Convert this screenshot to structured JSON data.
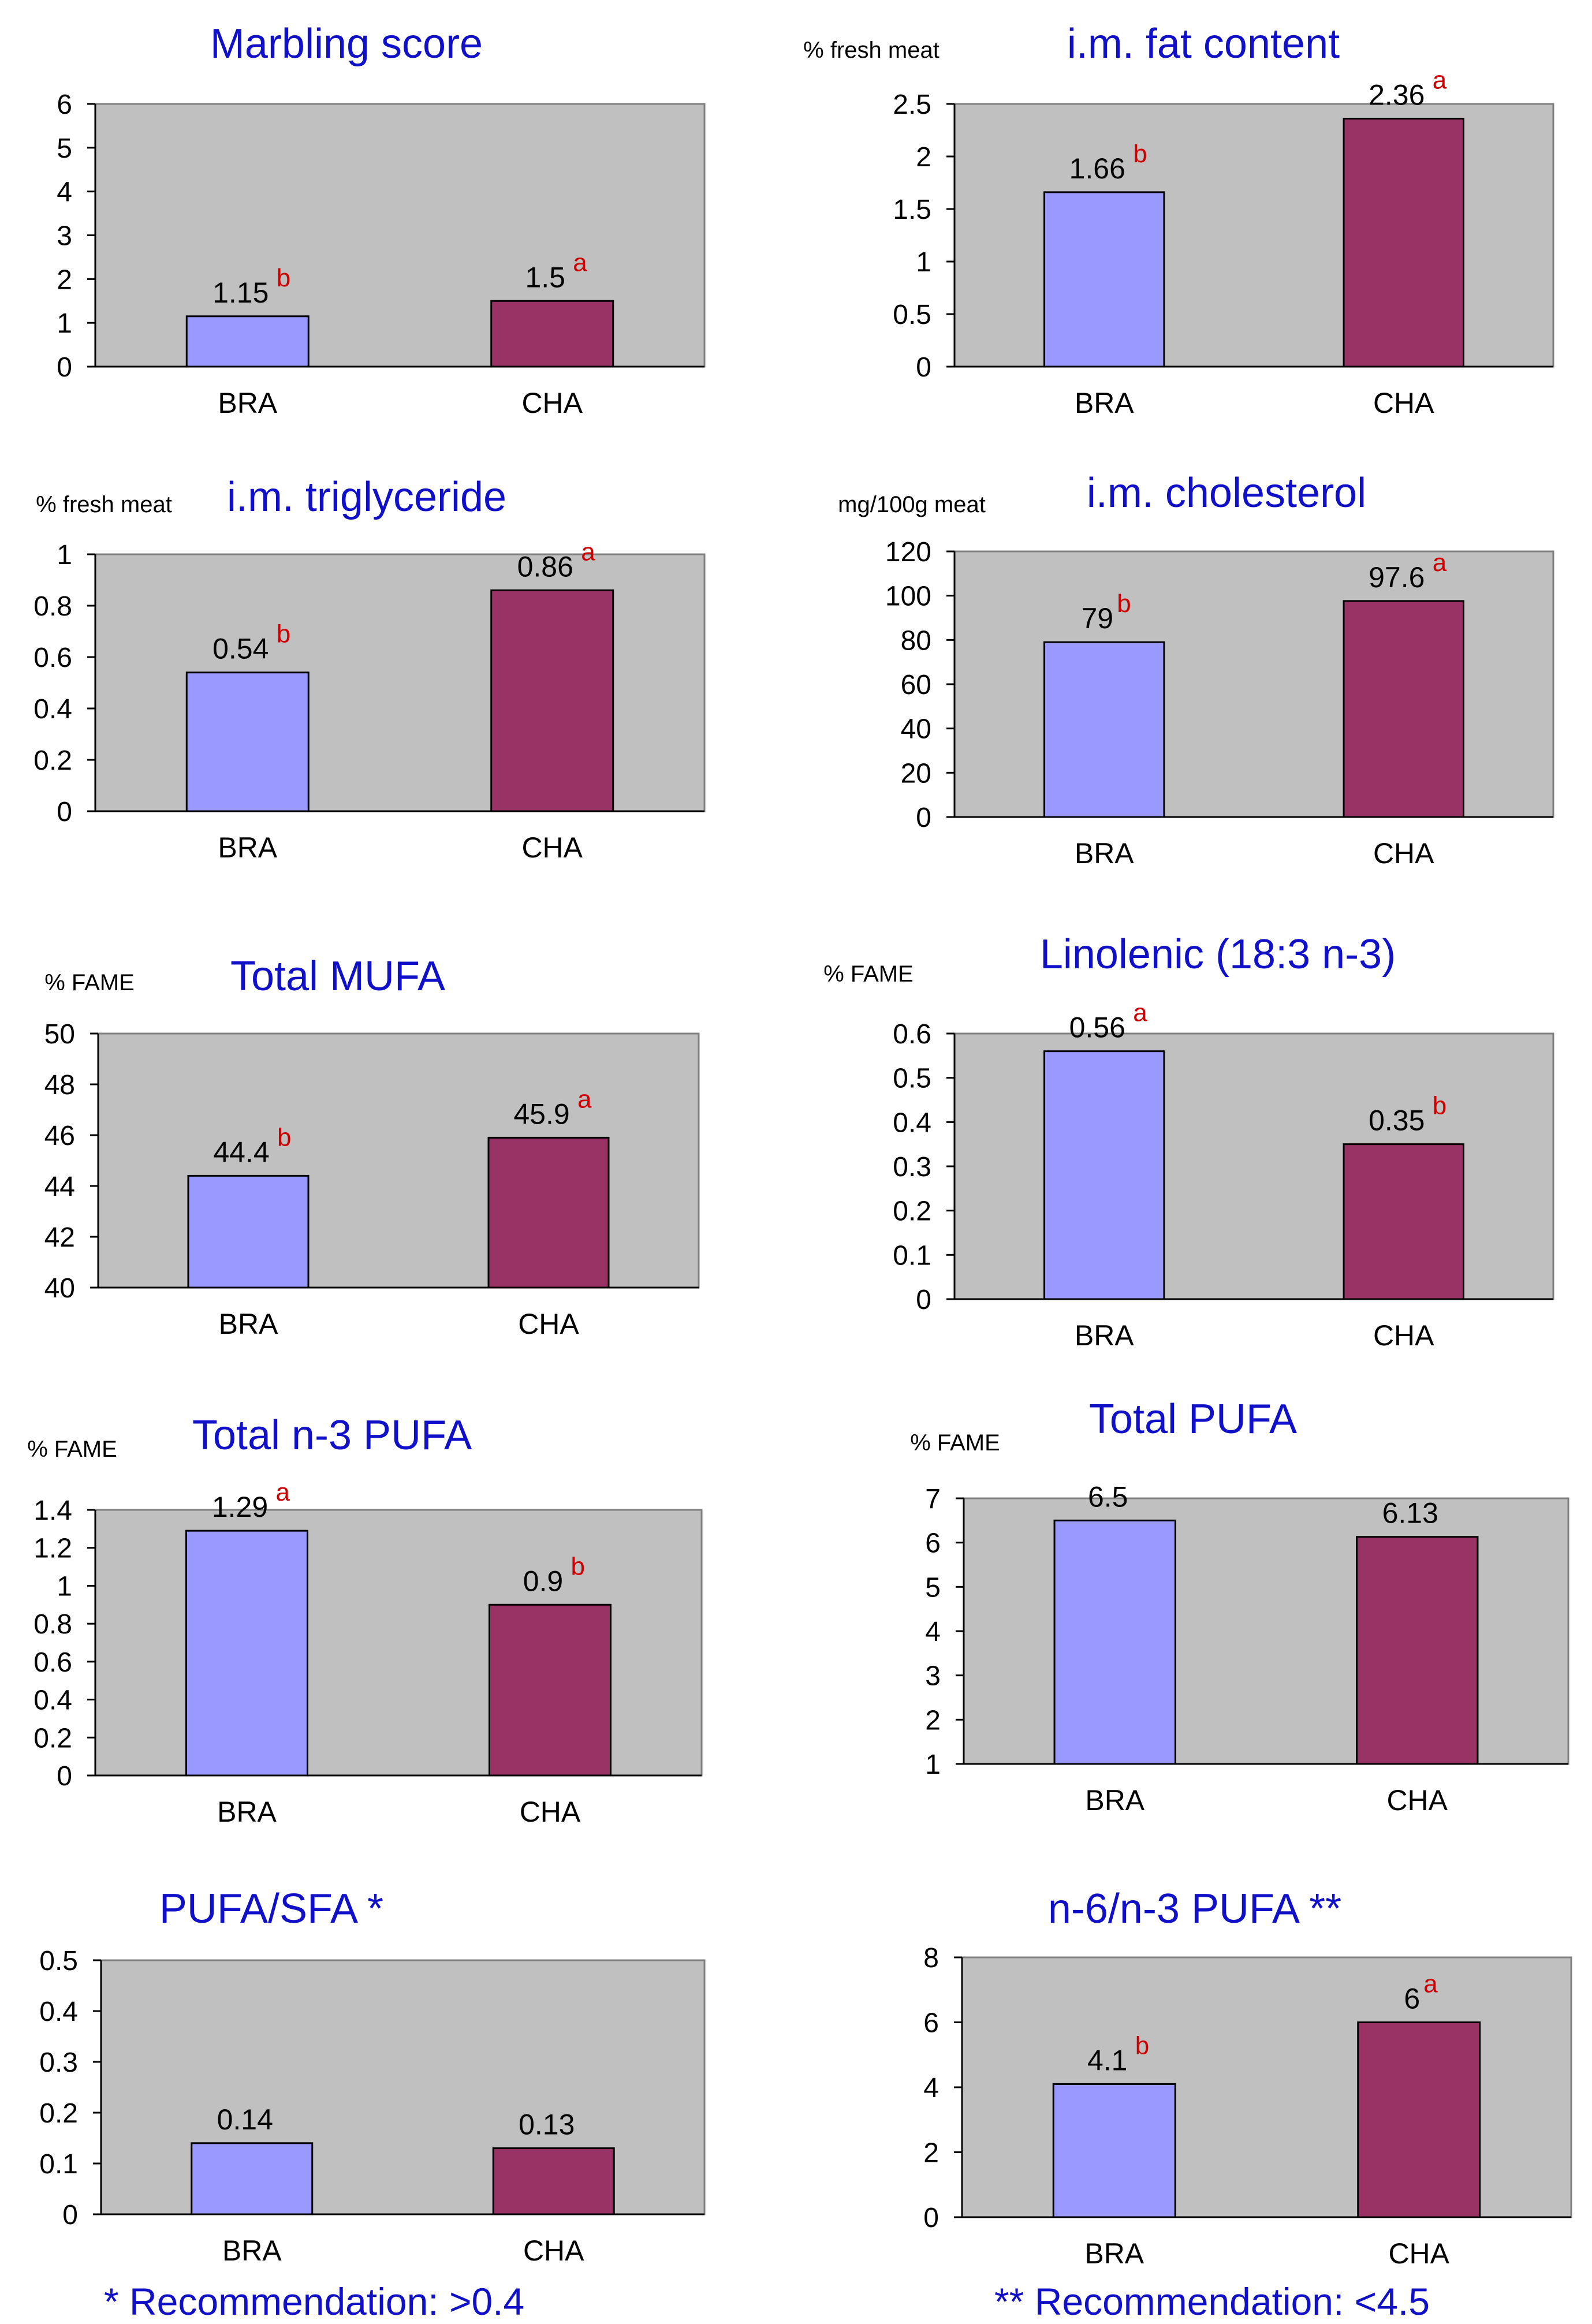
{
  "colors": {
    "title": "#1010c8",
    "plot_bg": "#c0c0c0",
    "bra": "#9999ff",
    "cha": "#993366",
    "sig": "#cc0000",
    "text": "#000000"
  },
  "chart_data": [
    {
      "type": "bar",
      "title": "Marbling score",
      "ylabel": "",
      "categories": [
        "BRA",
        "CHA"
      ],
      "values": [
        1.15,
        1.5
      ],
      "value_labels": [
        "1.15",
        "1.5"
      ],
      "sig": [
        "b",
        "a"
      ],
      "ylim": [
        0,
        6
      ],
      "yticks": [
        0,
        1,
        2,
        3,
        4,
        5,
        6
      ],
      "ytick_labels": [
        "0",
        "1",
        "2",
        "3",
        "4",
        "5",
        "6"
      ],
      "grid": false,
      "legend": "none"
    },
    {
      "type": "bar",
      "title": "i.m. fat content",
      "ylabel": "% fresh meat",
      "categories": [
        "BRA",
        "CHA"
      ],
      "values": [
        1.66,
        2.36
      ],
      "value_labels": [
        "1.66",
        "2.36"
      ],
      "sig": [
        "b",
        "a"
      ],
      "ylim": [
        0,
        2.5
      ],
      "yticks": [
        0,
        0.5,
        1,
        1.5,
        2,
        2.5
      ],
      "ytick_labels": [
        "0",
        "0.5",
        "1",
        "1.5",
        "2",
        "2.5"
      ],
      "grid": false,
      "legend": "none"
    },
    {
      "type": "bar",
      "title": "i.m. triglyceride",
      "ylabel": "% fresh meat",
      "categories": [
        "BRA",
        "CHA"
      ],
      "values": [
        0.54,
        0.86
      ],
      "value_labels": [
        "0.54",
        "0.86"
      ],
      "sig": [
        "b",
        "a"
      ],
      "ylim": [
        0,
        1
      ],
      "yticks": [
        0,
        0.2,
        0.4,
        0.6,
        0.8,
        1
      ],
      "ytick_labels": [
        "0",
        "0.2",
        "0.4",
        "0.6",
        "0.8",
        "1"
      ],
      "grid": false,
      "legend": "none"
    },
    {
      "type": "bar",
      "title": "i.m. cholesterol",
      "ylabel": "mg/100g meat",
      "categories": [
        "BRA",
        "CHA"
      ],
      "values": [
        79,
        97.6
      ],
      "value_labels": [
        "79",
        "97.6"
      ],
      "sig": [
        "b",
        "a"
      ],
      "ylim": [
        0,
        120
      ],
      "yticks": [
        0,
        20,
        40,
        60,
        80,
        100,
        120
      ],
      "ytick_labels": [
        "0",
        "20",
        "40",
        "60",
        "80",
        "100",
        "120"
      ],
      "grid": false,
      "legend": "none"
    },
    {
      "type": "bar",
      "title": "Total MUFA",
      "ylabel": "% FAME",
      "categories": [
        "BRA",
        "CHA"
      ],
      "values": [
        44.4,
        45.9
      ],
      "value_labels": [
        "44.4",
        "45.9"
      ],
      "sig": [
        "b",
        "a"
      ],
      "ylim": [
        40,
        50
      ],
      "yticks": [
        40,
        42,
        44,
        46,
        48,
        50
      ],
      "ytick_labels": [
        "40",
        "42",
        "44",
        "46",
        "48",
        "50"
      ],
      "grid": false,
      "legend": "none"
    },
    {
      "type": "bar",
      "title": "Linolenic (18:3 n-3)",
      "ylabel": "% FAME",
      "categories": [
        "BRA",
        "CHA"
      ],
      "values": [
        0.56,
        0.35
      ],
      "value_labels": [
        "0.56",
        "0.35"
      ],
      "sig": [
        "a",
        "b"
      ],
      "ylim": [
        0,
        0.6
      ],
      "yticks": [
        0,
        0.1,
        0.2,
        0.3,
        0.4,
        0.5,
        0.6
      ],
      "ytick_labels": [
        "0",
        "0.1",
        "0.2",
        "0.3",
        "0.4",
        "0.5",
        "0.6"
      ],
      "grid": false,
      "legend": "none"
    },
    {
      "type": "bar",
      "title": "Total n-3 PUFA",
      "ylabel": "% FAME",
      "categories": [
        "BRA",
        "CHA"
      ],
      "values": [
        1.29,
        0.9
      ],
      "value_labels": [
        "1.29",
        "0.9"
      ],
      "sig": [
        "a",
        "b"
      ],
      "ylim": [
        0,
        1.4
      ],
      "yticks": [
        0,
        0.2,
        0.4,
        0.6,
        0.8,
        1,
        1.2,
        1.4
      ],
      "ytick_labels": [
        "0",
        "0.2",
        "0.4",
        "0.6",
        "0.8",
        "1",
        "1.2",
        "1.4"
      ],
      "grid": false,
      "legend": "none"
    },
    {
      "type": "bar",
      "title": "Total PUFA",
      "ylabel": "% FAME",
      "categories": [
        "BRA",
        "CHA"
      ],
      "values": [
        6.5,
        6.13
      ],
      "value_labels": [
        "6.5",
        "6.13"
      ],
      "sig": [
        "",
        ""
      ],
      "ylim": [
        1,
        7
      ],
      "yticks": [
        1,
        2,
        3,
        4,
        5,
        6,
        7
      ],
      "ytick_labels": [
        "1",
        "2",
        "3",
        "4",
        "5",
        "6",
        "7"
      ],
      "grid": false,
      "legend": "none"
    },
    {
      "type": "bar",
      "title": "PUFA/SFA *",
      "ylabel": "",
      "categories": [
        "BRA",
        "CHA"
      ],
      "values": [
        0.14,
        0.13
      ],
      "value_labels": [
        "0.14",
        "0.13"
      ],
      "sig": [
        "",
        ""
      ],
      "ylim": [
        0,
        0.5
      ],
      "yticks": [
        0,
        0.1,
        0.2,
        0.3,
        0.4,
        0.5
      ],
      "ytick_labels": [
        "0",
        "0.1",
        "0.2",
        "0.3",
        "0.4",
        "0.5"
      ],
      "grid": false,
      "legend": "none"
    },
    {
      "type": "bar",
      "title": "n-6/n-3 PUFA **",
      "ylabel": "",
      "categories": [
        "BRA",
        "CHA"
      ],
      "values": [
        4.1,
        6
      ],
      "value_labels": [
        "4.1",
        "6"
      ],
      "sig": [
        "b",
        "a"
      ],
      "ylim": [
        0,
        8
      ],
      "yticks": [
        0,
        2,
        4,
        6,
        8
      ],
      "ytick_labels": [
        "0",
        "2",
        "4",
        "6",
        "8"
      ],
      "grid": false,
      "legend": "none"
    }
  ],
  "footnotes": {
    "left": "* Recommendation: >0.4",
    "right": "** Recommendation: <4.5"
  }
}
